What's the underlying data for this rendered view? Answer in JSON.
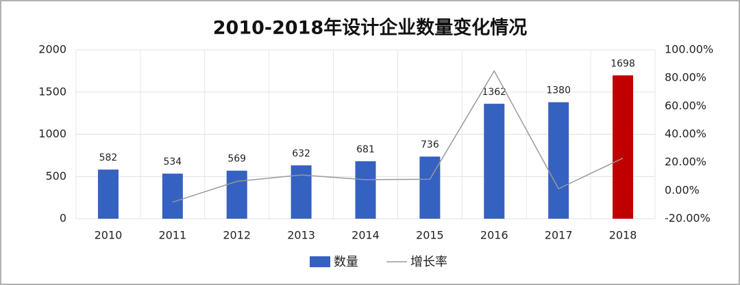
{
  "chart_data": {
    "type": "bar",
    "title": "2010-2018年设计企业数量变化情况",
    "categories": [
      "2010",
      "2011",
      "2012",
      "2013",
      "2014",
      "2015",
      "2016",
      "2017",
      "2018"
    ],
    "series": [
      {
        "name": "数量",
        "type": "bar",
        "color": "#3561c1",
        "colors": [
          "#3561c1",
          "#3561c1",
          "#3561c1",
          "#3561c1",
          "#3561c1",
          "#3561c1",
          "#3561c1",
          "#3561c1",
          "#c00000"
        ],
        "values": [
          582,
          534,
          569,
          632,
          681,
          736,
          1362,
          1380,
          1698
        ]
      },
      {
        "name": "增长率",
        "type": "line",
        "color": "#999999",
        "axis": "y2",
        "values": [
          null,
          -8.25,
          6.55,
          11.07,
          7.75,
          8.08,
          85.05,
          1.32,
          23.04
        ]
      }
    ],
    "ylim": [
      0,
      2000
    ],
    "yticks": [
      0,
      500,
      1000,
      1500,
      2000
    ],
    "y2lim": [
      -20,
      100
    ],
    "y2ticks": [
      {
        "value": -20,
        "label": "-20.00%"
      },
      {
        "value": 0,
        "label": "0.00%"
      },
      {
        "value": 20,
        "label": "20.00%"
      },
      {
        "value": 40,
        "label": "40.00%"
      },
      {
        "value": 60,
        "label": "60.00%"
      },
      {
        "value": 80,
        "label": "80.00%"
      },
      {
        "value": 100,
        "label": "100.00%"
      }
    ],
    "grid": true,
    "legend": "bottom"
  }
}
